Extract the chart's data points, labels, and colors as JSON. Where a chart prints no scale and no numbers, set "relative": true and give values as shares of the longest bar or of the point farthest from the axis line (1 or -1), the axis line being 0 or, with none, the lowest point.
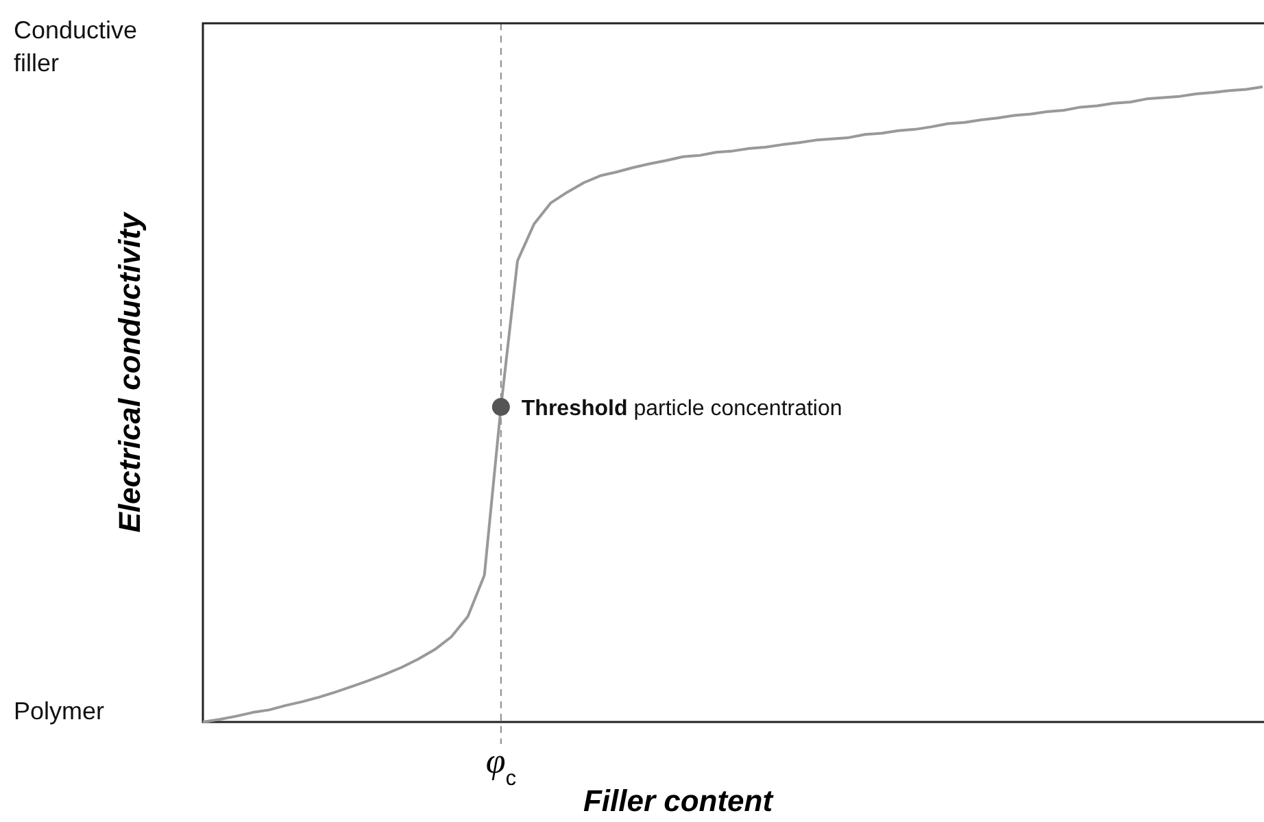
{
  "chart_data": {
    "type": "line",
    "xlabel": "Filler content",
    "ylabel": "Electrical conductivity",
    "relative": true,
    "categories": [
      null,
      null,
      null,
      null,
      null,
      null,
      null,
      null,
      null,
      null,
      null,
      null,
      null,
      null,
      null,
      null,
      null,
      null,
      null,
      null,
      null,
      null,
      null,
      null,
      null,
      null,
      null,
      null,
      null,
      null,
      null,
      null,
      null,
      null,
      null,
      null,
      null,
      null,
      null,
      null,
      null,
      null,
      null,
      null,
      null,
      null,
      null,
      null,
      null,
      null,
      null,
      null,
      null,
      null,
      null,
      null,
      null,
      null,
      null,
      null,
      null,
      null,
      null,
      null,
      null
    ],
    "series": [
      {
        "type": "line",
        "color": "#999999",
        "marker": "none",
        "values": [
          0,
          0.004,
          0.009,
          0.015,
          0.019,
          0.026,
          0.032,
          0.039,
          0.047,
          0.056,
          0.065,
          0.075,
          0.086,
          0.099,
          0.114,
          0.134,
          0.166,
          0.231,
          0.496,
          0.726,
          0.784,
          0.817,
          0.834,
          0.849,
          0.86,
          0.866,
          0.873,
          0.879,
          0.884,
          0.89,
          0.892,
          0.897,
          0.899,
          0.903,
          0.905,
          0.909,
          0.912,
          0.916,
          0.918,
          0.92,
          0.925,
          0.927,
          0.931,
          0.933,
          0.937,
          0.942,
          0.944,
          0.948,
          0.951,
          0.955,
          0.957,
          0.961,
          0.963,
          0.968,
          0.97,
          0.974,
          0.976,
          0.981,
          0.983,
          0.985,
          0.989,
          0.991,
          0.994,
          0.996,
          1
        ]
      }
    ],
    "ref_lines": [
      {
        "axis": "x",
        "label": "φ$_{c}$",
        "color": "#888888",
        "line_style": "dashed"
      }
    ],
    "annotations": [
      "Conductive filler",
      "Polymer",
      "Threshold particle concentration"
    ]
  }
}
